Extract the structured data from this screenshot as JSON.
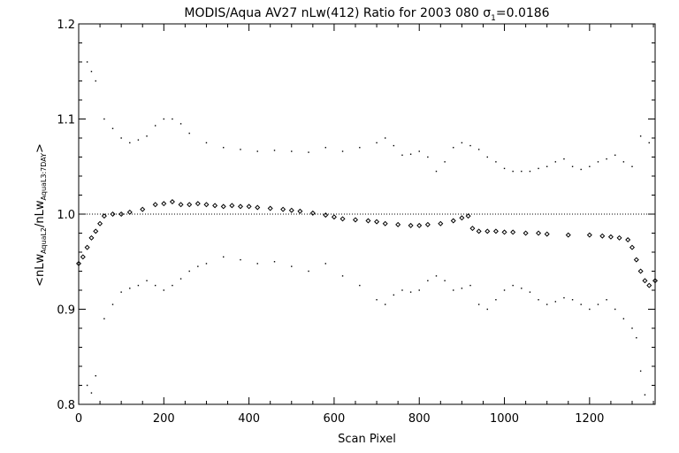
{
  "chart_data": {
    "type": "scatter",
    "title_parts": {
      "main": "MODIS/Aqua AV27 nLw(412) Ratio for 2003 080 ",
      "sigma": "σ",
      "sigma_sub": "1",
      "sigma_value": "=0.0186"
    },
    "xlabel": "Scan Pixel",
    "ylabel_parts": {
      "open": "<nLw",
      "sub1": "AquaL2",
      "slash": "/nLw",
      "sub2": "AquaL3:7DAY",
      "close": ">"
    },
    "xlim": [
      0,
      1354
    ],
    "ylim": [
      0.8,
      1.2
    ],
    "x_ticks": [
      0,
      200,
      400,
      600,
      800,
      1000,
      1200
    ],
    "x_tick_labels": [
      "0",
      "200",
      "400",
      "600",
      "800",
      "1000",
      "1200"
    ],
    "y_ticks": [
      0.8,
      0.9,
      1.0,
      1.1,
      1.2
    ],
    "y_tick_labels": [
      "0.8",
      "0.9",
      "1.0",
      "1.1",
      "1.2"
    ],
    "reference_line": 1.0,
    "mean_series": {
      "marker": "diamond",
      "x": [
        0,
        10,
        20,
        30,
        40,
        50,
        60,
        80,
        100,
        120,
        150,
        180,
        200,
        220,
        240,
        260,
        280,
        300,
        320,
        340,
        360,
        380,
        400,
        420,
        450,
        480,
        500,
        520,
        550,
        580,
        600,
        620,
        650,
        680,
        700,
        720,
        750,
        780,
        800,
        820,
        850,
        880,
        900,
        915,
        925,
        940,
        960,
        980,
        1000,
        1020,
        1050,
        1080,
        1100,
        1150,
        1200,
        1230,
        1250,
        1270,
        1290,
        1300,
        1310,
        1320,
        1330,
        1340,
        1354
      ],
      "y": [
        0.948,
        0.955,
        0.965,
        0.975,
        0.982,
        0.99,
        0.998,
        1.0,
        1.0,
        1.002,
        1.005,
        1.01,
        1.011,
        1.013,
        1.01,
        1.01,
        1.011,
        1.01,
        1.009,
        1.008,
        1.009,
        1.008,
        1.008,
        1.007,
        1.006,
        1.005,
        1.004,
        1.003,
        1.001,
        0.999,
        0.997,
        0.995,
        0.994,
        0.993,
        0.992,
        0.99,
        0.989,
        0.988,
        0.988,
        0.989,
        0.99,
        0.993,
        0.996,
        0.998,
        0.985,
        0.982,
        0.982,
        0.982,
        0.981,
        0.981,
        0.98,
        0.98,
        0.979,
        0.978,
        0.978,
        0.977,
        0.976,
        0.975,
        0.973,
        0.965,
        0.952,
        0.94,
        0.93,
        0.925,
        0.93
      ]
    },
    "upper_series": {
      "marker": "dot",
      "x": [
        20,
        30,
        40,
        60,
        80,
        100,
        120,
        140,
        160,
        180,
        200,
        220,
        240,
        260,
        300,
        340,
        380,
        420,
        460,
        500,
        540,
        580,
        620,
        660,
        700,
        720,
        740,
        760,
        780,
        800,
        820,
        840,
        860,
        880,
        900,
        920,
        940,
        960,
        980,
        1000,
        1020,
        1040,
        1060,
        1080,
        1100,
        1120,
        1140,
        1160,
        1180,
        1200,
        1220,
        1240,
        1260,
        1280,
        1300,
        1320,
        1340
      ],
      "y": [
        1.16,
        1.15,
        1.14,
        1.1,
        1.09,
        1.08,
        1.075,
        1.078,
        1.082,
        1.093,
        1.1,
        1.1,
        1.095,
        1.085,
        1.075,
        1.07,
        1.068,
        1.066,
        1.067,
        1.066,
        1.065,
        1.07,
        1.066,
        1.07,
        1.075,
        1.08,
        1.072,
        1.062,
        1.063,
        1.066,
        1.06,
        1.045,
        1.055,
        1.07,
        1.075,
        1.072,
        1.068,
        1.06,
        1.055,
        1.048,
        1.045,
        1.045,
        1.045,
        1.048,
        1.05,
        1.055,
        1.058,
        1.05,
        1.047,
        1.05,
        1.055,
        1.058,
        1.062,
        1.055,
        1.05,
        1.082,
        1.075
      ]
    },
    "lower_series": {
      "marker": "dot",
      "x": [
        20,
        30,
        40,
        60,
        80,
        100,
        120,
        140,
        160,
        180,
        200,
        220,
        240,
        260,
        280,
        300,
        340,
        380,
        420,
        460,
        500,
        540,
        580,
        620,
        660,
        700,
        720,
        740,
        760,
        780,
        800,
        820,
        840,
        860,
        880,
        900,
        920,
        940,
        960,
        980,
        1000,
        1020,
        1040,
        1060,
        1080,
        1100,
        1120,
        1140,
        1160,
        1180,
        1200,
        1220,
        1240,
        1260,
        1280,
        1300,
        1310,
        1320,
        1330
      ],
      "y": [
        0.82,
        0.812,
        0.83,
        0.89,
        0.905,
        0.918,
        0.922,
        0.925,
        0.93,
        0.925,
        0.92,
        0.925,
        0.932,
        0.94,
        0.945,
        0.948,
        0.955,
        0.952,
        0.948,
        0.95,
        0.945,
        0.94,
        0.948,
        0.935,
        0.925,
        0.91,
        0.905,
        0.915,
        0.92,
        0.918,
        0.92,
        0.93,
        0.935,
        0.93,
        0.92,
        0.922,
        0.925,
        0.905,
        0.9,
        0.91,
        0.92,
        0.925,
        0.922,
        0.918,
        0.91,
        0.905,
        0.908,
        0.912,
        0.91,
        0.905,
        0.9,
        0.905,
        0.91,
        0.9,
        0.89,
        0.88,
        0.87,
        0.835,
        0.81
      ]
    }
  }
}
